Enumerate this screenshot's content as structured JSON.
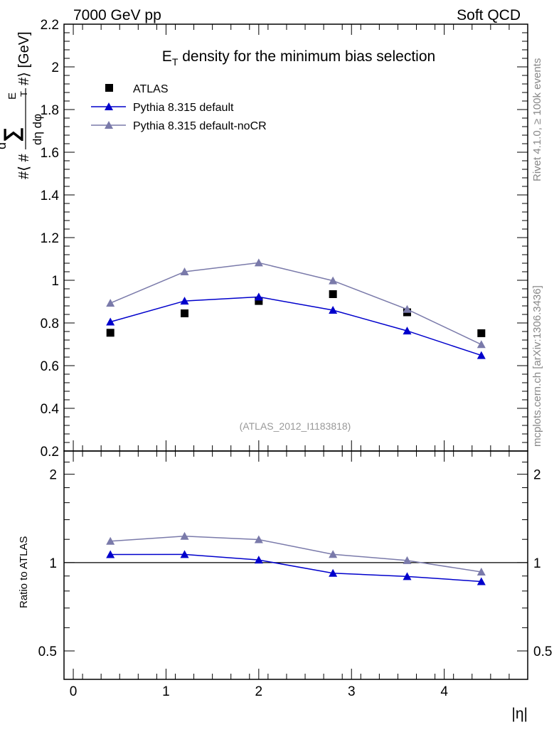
{
  "header": {
    "left": "7000 GeV pp",
    "right": "Soft QCD"
  },
  "side_labels": {
    "rivet": "Rivet 4.1.0, ≥ 100k events",
    "mcplots": "mcplots.cern.ch [arXiv:1306.3436]"
  },
  "chart_data": {
    "type": "line",
    "title_main": "E",
    "title_sub": "T",
    "title_rest": " density  for the minimum bias selection",
    "ylabel": "#⟨ #d∑E_T / dη dφ #⟩ [GeV]",
    "ylabel_parts": {
      "open": "#⟨ #",
      "d": "d",
      "sum": "∑",
      "e": "E",
      "t": "T",
      "denom": "dη dφ",
      "close": "#⟩ [GeV]"
    },
    "xlabel": "|η|",
    "ratio_ylabel": "Ratio to ATLAS",
    "watermark": "(ATLAS_2012_I1183818)",
    "xlim": [
      -0.1,
      4.9
    ],
    "ylim": [
      0.2,
      2.2
    ],
    "ratio_ylim": [
      0.4,
      2.4
    ],
    "x_ticks": [
      "0",
      "1",
      "2",
      "3",
      "4"
    ],
    "y_ticks": [
      "0.2",
      "0.4",
      "0.6",
      "0.8",
      "1",
      "1.2",
      "1.4",
      "1.6",
      "1.8",
      "2",
      "2.2"
    ],
    "ratio_ticks": [
      "0.5",
      "1",
      "2"
    ],
    "legend": {
      "atlas": "ATLAS",
      "pythia": "Pythia 8.315 default",
      "nocr": "Pythia 8.315 default-noCR"
    },
    "x": [
      0.4,
      1.2,
      2.0,
      2.8,
      3.6,
      4.4
    ],
    "series": [
      {
        "name": "ATLAS",
        "kind": "data",
        "color": "#000000",
        "values": [
          0.754,
          0.845,
          0.903,
          0.935,
          0.85,
          0.752
        ]
      },
      {
        "name": "Pythia 8.315 default",
        "kind": "mc",
        "color": "#0000cc",
        "values": [
          0.805,
          0.903,
          0.922,
          0.86,
          0.763,
          0.648
        ]
      },
      {
        "name": "Pythia 8.315 default-noCR",
        "kind": "mc",
        "color": "#7a7aaa",
        "values": [
          0.893,
          1.04,
          1.082,
          0.998,
          0.864,
          0.699
        ]
      }
    ],
    "ratios": [
      {
        "name": "Pythia 8.315 default",
        "color": "#0000cc",
        "values": [
          1.065,
          1.066,
          1.021,
          0.92,
          0.897,
          0.862
        ]
      },
      {
        "name": "Pythia 8.315 default-noCR",
        "color": "#7a7aaa",
        "values": [
          1.183,
          1.23,
          1.198,
          1.067,
          1.017,
          0.929
        ]
      }
    ]
  }
}
